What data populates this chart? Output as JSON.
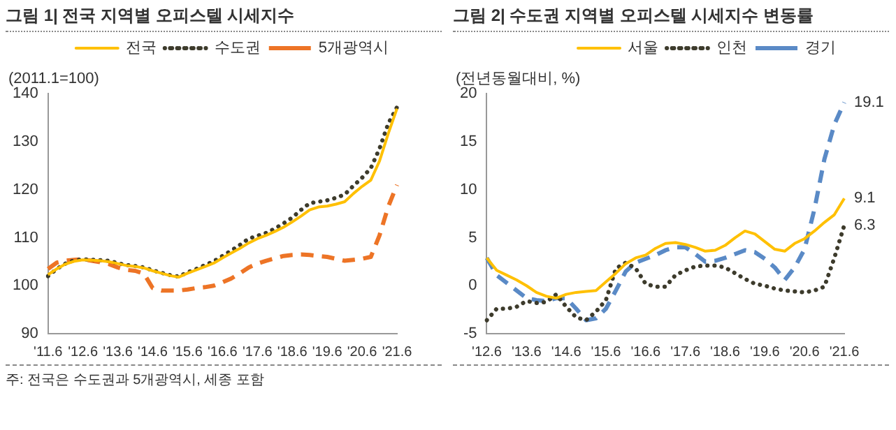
{
  "chart_data": [
    {
      "type": "line",
      "title": "그림 1| 전국 지역별 오피스텔 시세지수",
      "ylabel": "(2011.1=100)",
      "annotations": [
        "주: 전국은 수도권과 5개광역시, 세종 포함"
      ],
      "categories": [
        "'11.6",
        null,
        null,
        null,
        "'12.6",
        null,
        null,
        null,
        "'13.6",
        null,
        null,
        null,
        "'14.6",
        null,
        null,
        null,
        "'15.6",
        null,
        null,
        null,
        "'16.6",
        null,
        null,
        null,
        "'17.6",
        null,
        null,
        null,
        "'18.6",
        null,
        null,
        null,
        "'19.6",
        null,
        null,
        null,
        "'20.6",
        null,
        null,
        null,
        "'21.6"
      ],
      "ylim": [
        90,
        140
      ],
      "yticks": [
        90,
        100,
        110,
        120,
        130,
        140
      ],
      "grid": false,
      "legend": "top right",
      "marker": "none",
      "series": [
        {
          "name": "전국",
          "color": "#ffc000",
          "line_style": "solid",
          "values": [
            102.3,
            103.5,
            104.5,
            105.1,
            105.4,
            105.3,
            105.2,
            105,
            104.6,
            104.2,
            104,
            103.7,
            103.1,
            102.6,
            102.1,
            101.8,
            102.6,
            103.3,
            104,
            104.7,
            105.8,
            106.8,
            107.8,
            108.9,
            109.8,
            110.5,
            111.3,
            112.2,
            113.3,
            114.5,
            115.8,
            116.4,
            116.6,
            117,
            117.5,
            119.2,
            120.7,
            122,
            126,
            131.7,
            136.9
          ]
        },
        {
          "name": "수도권",
          "color": "#3d3b2c",
          "line_style": "dotted",
          "values": [
            102,
            103.5,
            104.6,
            105.3,
            105.5,
            105.4,
            105.3,
            105.2,
            104.7,
            104.3,
            104.1,
            103.8,
            103.2,
            102.7,
            102.2,
            101.9,
            102.8,
            103.5,
            104.3,
            105.1,
            106.2,
            107.3,
            108.5,
            109.8,
            110.4,
            111,
            111.9,
            113,
            114.2,
            115.8,
            117.2,
            117.5,
            117.8,
            118.3,
            119,
            120.8,
            122.5,
            124.5,
            128.6,
            133.8,
            137.2
          ]
        },
        {
          "name": "5개광역시",
          "color": "#ed7426",
          "line_style": "dashed",
          "values": [
            103.5,
            104.8,
            105.2,
            105.4,
            105.5,
            105.2,
            104.9,
            104.5,
            103.8,
            103.3,
            103.1,
            102.5,
            99.5,
            99,
            99,
            99,
            99.2,
            99.5,
            99.7,
            100,
            100.7,
            101.5,
            102.6,
            103.8,
            104.6,
            105.2,
            105.7,
            106.2,
            106.4,
            106.5,
            106.4,
            106.2,
            106,
            105.6,
            105.2,
            105.4,
            105.6,
            106,
            110.5,
            116.5,
            121
          ]
        }
      ]
    },
    {
      "type": "line",
      "title": "그림 2| 수도권 지역별 오피스텔 시세지수 변동률",
      "ylabel": "(전년동월대비, %)",
      "annotations": [
        {
          "text": "19.1",
          "x": "'21.6",
          "y": 19.1
        },
        {
          "text": "9.1",
          "x": "'21.6",
          "y": 9.1
        },
        {
          "text": "6.3",
          "x": "'21.6",
          "y": 6.3
        }
      ],
      "categories": [
        "'12.6",
        null,
        null,
        null,
        "'13.6",
        null,
        null,
        null,
        "'14.6",
        null,
        null,
        null,
        "'15.6",
        null,
        null,
        null,
        "'16.6",
        null,
        null,
        null,
        "'17.6",
        null,
        null,
        null,
        "'18.6",
        null,
        null,
        null,
        "'19.6",
        null,
        null,
        null,
        "'20.6",
        null,
        null,
        null,
        "'21.6"
      ],
      "ylim": [
        -5,
        20
      ],
      "yticks": [
        -5,
        0,
        5,
        10,
        15,
        20
      ],
      "grid": false,
      "legend": "top right",
      "marker": "none",
      "series": [
        {
          "name": "서울",
          "color": "#ffc000",
          "line_style": "solid",
          "values": [
            2.9,
            1.6,
            1.1,
            0.6,
            0,
            -0.7,
            -1.1,
            -1.3,
            -0.9,
            -0.7,
            -0.6,
            -0.5,
            0.4,
            1.3,
            2.3,
            2.9,
            3.2,
            3.9,
            4.4,
            4.5,
            4.3,
            4,
            3.6,
            3.7,
            4.2,
            5,
            5.7,
            5.4,
            4.6,
            3.8,
            3.6,
            4.4,
            4.9,
            5.7,
            6.6,
            7.4,
            9.1
          ]
        },
        {
          "name": "인천",
          "color": "#3d3b2c",
          "line_style": "dotted",
          "values": [
            -3.6,
            -2.4,
            -2.4,
            -2.2,
            -1.6,
            -1.8,
            -1.7,
            -0.9,
            -2.2,
            -3.3,
            -3.6,
            -2.7,
            -1.5,
            1.8,
            2.4,
            1.8,
            0.2,
            -0.1,
            -0.1,
            1.1,
            1.6,
            2,
            2.1,
            2.1,
            1.9,
            1.3,
            0.7,
            0.2,
            0,
            -0.3,
            -0.5,
            -0.6,
            -0.7,
            -0.5,
            -0.1,
            2.9,
            6.3
          ]
        },
        {
          "name": "경기",
          "color": "#5a8ac6",
          "line_style": "dashed",
          "values": [
            2.9,
            1.1,
            0.3,
            -0.5,
            -1.3,
            -1.5,
            -1.6,
            -1.3,
            -1.3,
            -2.4,
            -3.6,
            -3.4,
            -2.4,
            -0.5,
            1.5,
            2.4,
            2.8,
            3.2,
            3.7,
            4,
            4,
            3.3,
            2.5,
            2.6,
            2.9,
            3.3,
            3.7,
            3.5,
            2.8,
            1.9,
            0.6,
            1.9,
            3.8,
            8,
            13.2,
            16.8,
            19.1
          ]
        }
      ]
    }
  ]
}
